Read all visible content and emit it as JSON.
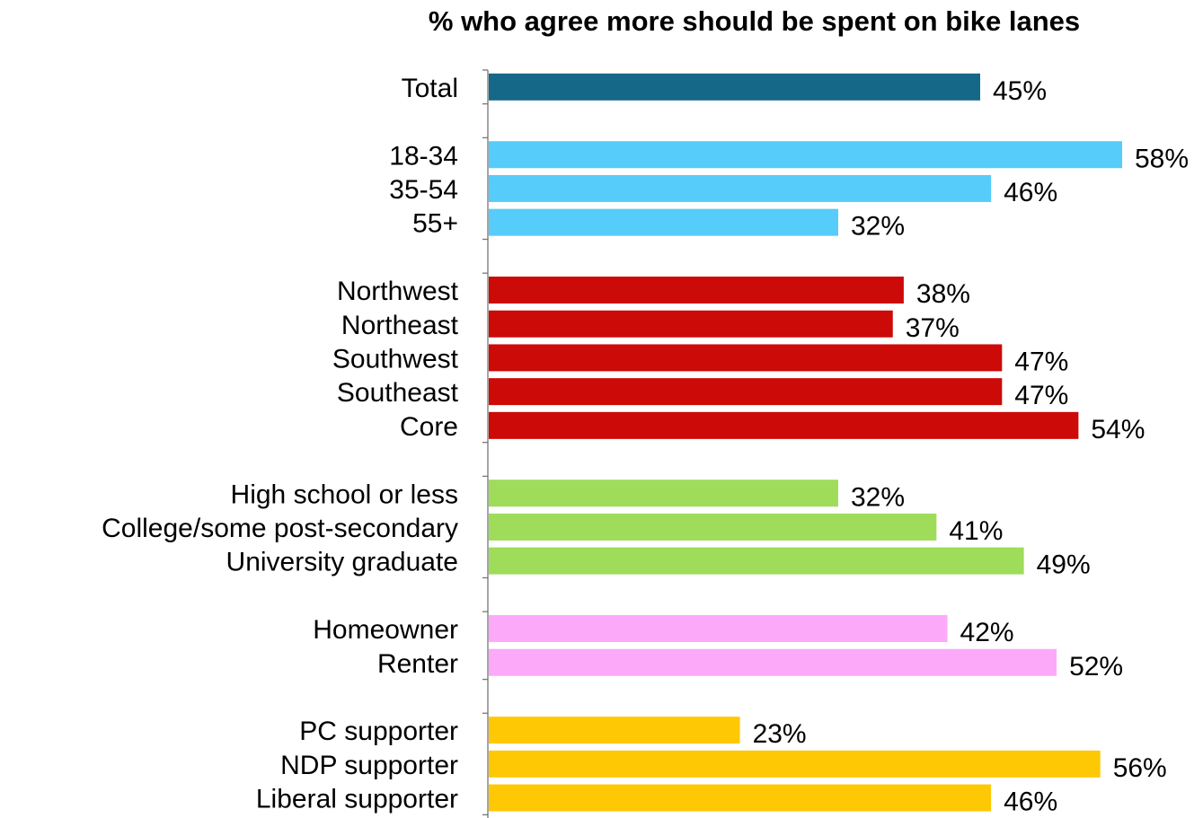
{
  "chart_data": {
    "type": "bar",
    "orientation": "horizontal",
    "title": "% who agree more should be spent on bike lanes",
    "xlabel": "",
    "ylabel": "",
    "xlim": [
      0,
      58
    ],
    "grid": false,
    "legend": "none",
    "groups": [
      {
        "color": "#166888",
        "rows": [
          {
            "category": "Total",
            "value": 45,
            "label": "45%"
          }
        ]
      },
      {
        "color": "#55CCFA",
        "rows": [
          {
            "category": "18-34",
            "value": 58,
            "label": "58%"
          },
          {
            "category": "35-54",
            "value": 46,
            "label": "46%"
          },
          {
            "category": "55+",
            "value": 32,
            "label": "32%"
          }
        ]
      },
      {
        "color": "#CC0A07",
        "rows": [
          {
            "category": "Northwest",
            "value": 38,
            "label": "38%"
          },
          {
            "category": "Northeast",
            "value": 37,
            "label": "37%"
          },
          {
            "category": "Southwest",
            "value": 47,
            "label": "47%"
          },
          {
            "category": "Southeast",
            "value": 47,
            "label": "47%"
          },
          {
            "category": "Core",
            "value": 54,
            "label": "54%"
          }
        ]
      },
      {
        "color": "#9EDC5A",
        "rows": [
          {
            "category": "High school or less",
            "value": 32,
            "label": "32%"
          },
          {
            "category": "College/some post-secondary",
            "value": 41,
            "label": "41%"
          },
          {
            "category": "University graduate",
            "value": 49,
            "label": "49%"
          }
        ]
      },
      {
        "color": "#FCA9FA",
        "rows": [
          {
            "category": "Homeowner",
            "value": 42,
            "label": "42%"
          },
          {
            "category": "Renter",
            "value": 52,
            "label": "52%"
          }
        ]
      },
      {
        "color": "#FFC805",
        "rows": [
          {
            "category": "PC supporter",
            "value": 23,
            "label": "23%"
          },
          {
            "category": "NDP supporter",
            "value": 56,
            "label": "56%"
          },
          {
            "category": "Liberal supporter",
            "value": 46,
            "label": "46%"
          }
        ]
      }
    ]
  }
}
